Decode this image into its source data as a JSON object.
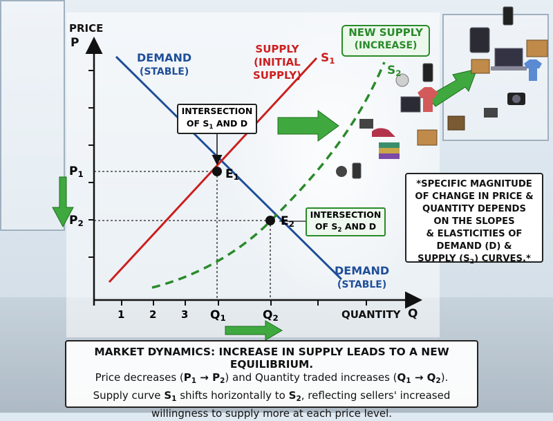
{
  "axes": {
    "y_title": "PRICE",
    "y_symbol": "P",
    "x_title": "QUANTITY",
    "x_symbol": "Q",
    "x_ticks": [
      "1",
      "2",
      "3"
    ],
    "price_labels": {
      "p1": "P",
      "p1_sub": "1",
      "p2": "P",
      "p2_sub": "2"
    },
    "qty_labels": {
      "q1": "Q",
      "q1_sub": "1",
      "q2": "Q",
      "q2_sub": "2"
    }
  },
  "labels": {
    "demand_top_1": "DEMAND",
    "demand_top_2": "(STABLE)",
    "demand_bottom_1": "DEMAND",
    "demand_bottom_2": "(STABLE)",
    "supply_1": "SUPPLY",
    "supply_2": "(INITIAL",
    "supply_3": "SUPPLY)",
    "s1": "S",
    "s1_sub": "1",
    "new_supply_1": "NEW SUPPLY",
    "new_supply_2": "(INCREASE)",
    "s2": "S",
    "s2_sub": "2",
    "e1": "E",
    "e1_sub": "1",
    "e2": "E",
    "e2_sub": "2"
  },
  "callouts": {
    "int1_line1": "INTERSECTION",
    "int1_line2a": "OF S",
    "int1_sub": "1",
    "int1_line2b": " AND D",
    "int2_line1": "INTERSECTION",
    "int2_line2a": "OF S",
    "int2_sub": "2",
    "int2_line2b": " AND D"
  },
  "note": {
    "l1": "*SPECIFIC MAGNITUDE",
    "l2": "OF CHANGE IN PRICE &",
    "l3": "QUANTITY DEPENDS",
    "l4": "ON THE SLOPES",
    "l5": "& ELASTICITIES OF",
    "l6": "DEMAND (D) &",
    "l7a": "SUPPLY (S",
    "l7sub": "2",
    "l7b": ") CURVES.*"
  },
  "footer": {
    "title": "MARKET DYNAMICS: INCREASE IN SUPPLY LEADS TO A NEW EQUILIBRIUM.",
    "l1_a": "Price decreases (",
    "l1_p1": "P",
    "l1_p1s": "1",
    "l1_arrow": " → ",
    "l1_p2": "P",
    "l1_p2s": "2",
    "l1_b": ") and Quantity traded increases (",
    "l1_q1": "Q",
    "l1_q1s": "1",
    "l1_arrow2": " → ",
    "l1_q2": "Q",
    "l1_q2s": "2",
    "l1_c": ").",
    "l2_a": "Supply curve ",
    "l2_s1": "S",
    "l2_s1s": "1",
    "l2_b": " shifts horizontally to ",
    "l2_s2": "S",
    "l2_s2s": "2",
    "l2_c": ", reflecting sellers' increased",
    "l3": "willingness to supply more at each price level."
  },
  "colors": {
    "demand": "#1f4e98",
    "supply_initial": "#cc1f1f",
    "supply_new": "#2a8a2a",
    "arrow": "#3fa83f"
  },
  "icons": [
    "goods-boxes-icon",
    "smartphone-icon",
    "laptop-icon",
    "camera-icon",
    "shirt-icon",
    "tablet-icon"
  ]
}
